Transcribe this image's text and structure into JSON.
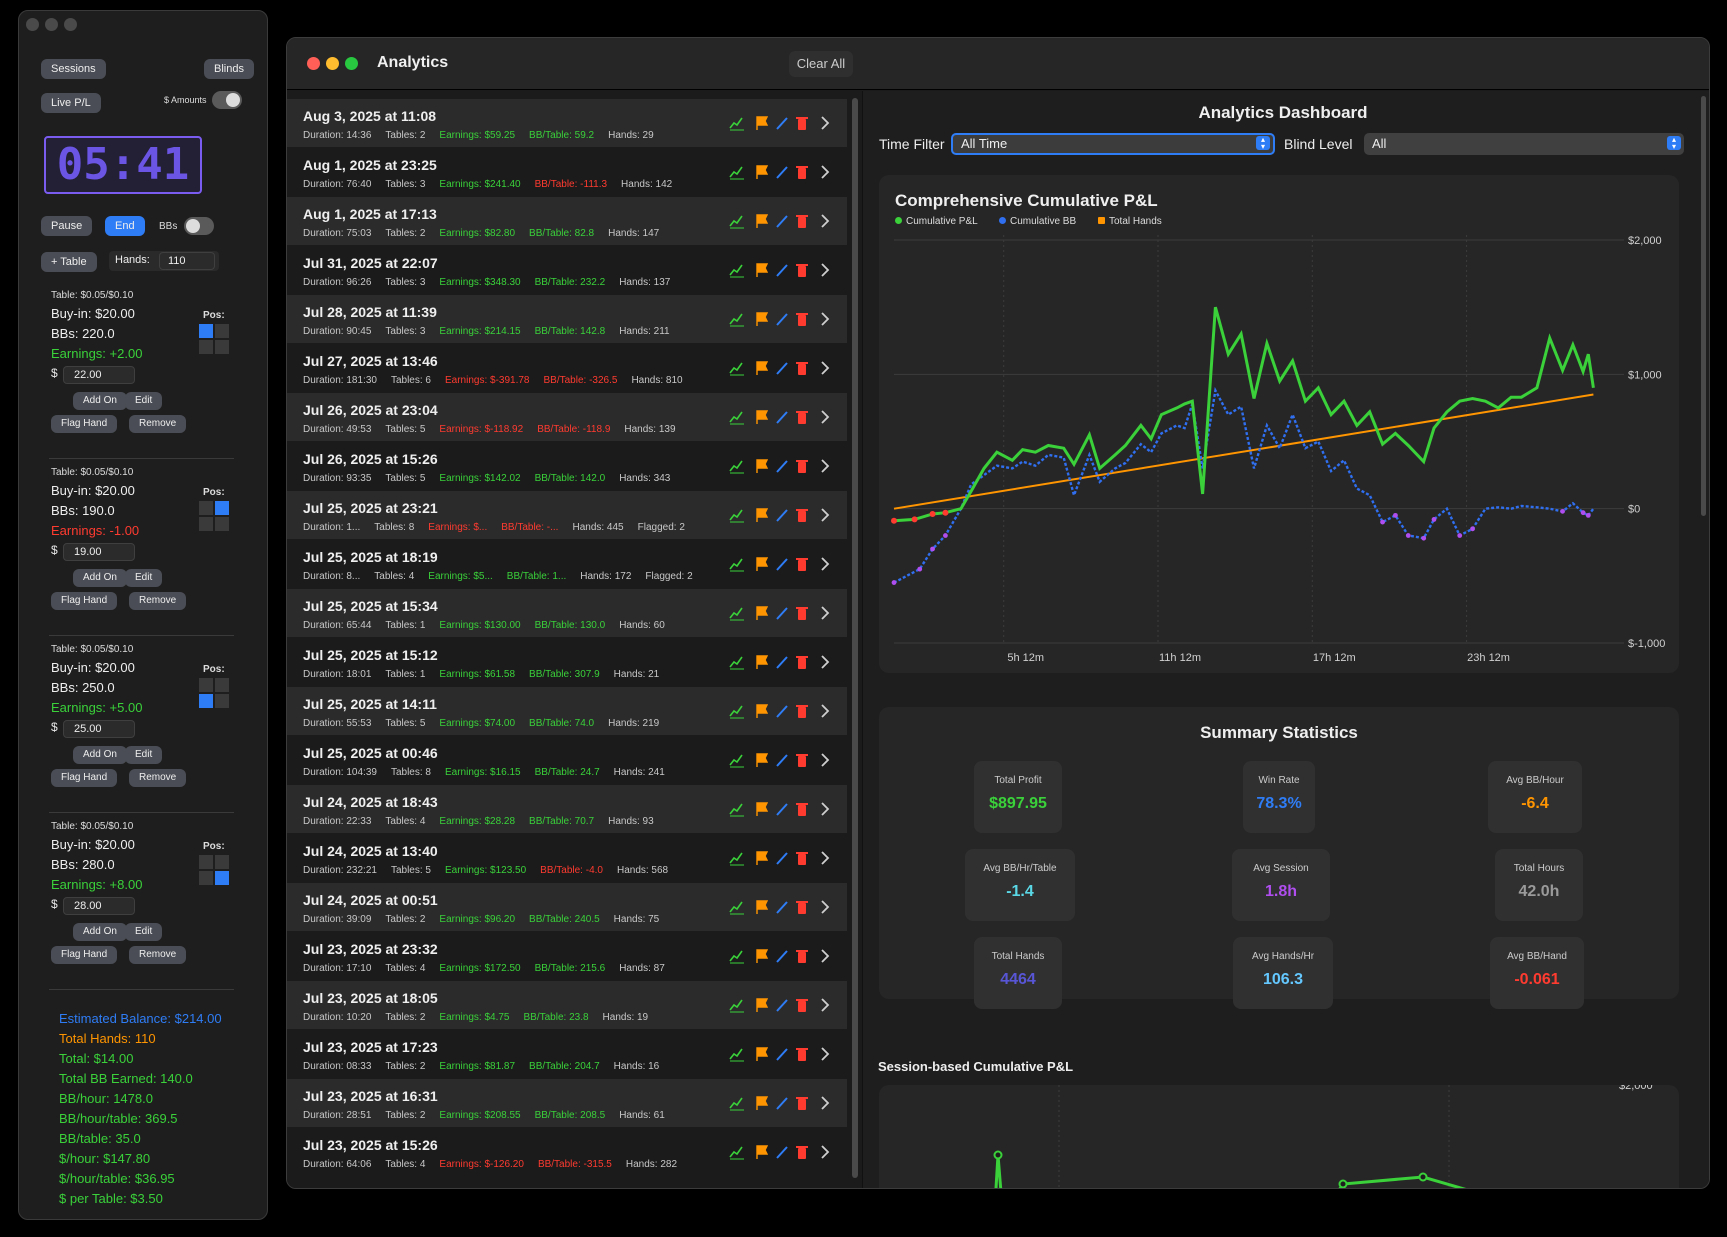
{
  "tracker": {
    "sessions_label": "Sessions",
    "blinds_label": "Blinds",
    "live_pl_label": "Live P/L",
    "amounts_label": "$ Amounts",
    "timer": "05:41",
    "pause_label": "Pause",
    "end_label": "End",
    "bbs_label": "BBs",
    "add_table_label": "+ Table",
    "hands_label": "Hands:",
    "hands_value": "110",
    "tables": [
      {
        "header": "Table: $0.05/$0.10",
        "buyin": "Buy-in: $20.00",
        "bbs": "BBs: 220.0",
        "earnings": "Earnings: +2.00",
        "earn_sign": "pos",
        "amount": "22.00",
        "pos_label": "Pos:",
        "pos_cells": [
          1,
          0,
          0,
          0
        ]
      },
      {
        "header": "Table: $0.05/$0.10",
        "buyin": "Buy-in: $20.00",
        "bbs": "BBs: 190.0",
        "earnings": "Earnings: -1.00",
        "earn_sign": "neg",
        "amount": "19.00",
        "pos_label": "Pos:",
        "pos_cells": [
          0,
          1,
          0,
          0
        ]
      },
      {
        "header": "Table: $0.05/$0.10",
        "buyin": "Buy-in: $20.00",
        "bbs": "BBs: 250.0",
        "earnings": "Earnings: +5.00",
        "earn_sign": "pos",
        "amount": "25.00",
        "pos_label": "Pos:",
        "pos_cells": [
          0,
          0,
          1,
          0
        ]
      },
      {
        "header": "Table: $0.05/$0.10",
        "buyin": "Buy-in: $20.00",
        "bbs": "BBs: 280.0",
        "earnings": "Earnings: +8.00",
        "earn_sign": "pos",
        "amount": "28.00",
        "pos_label": "Pos:",
        "pos_cells": [
          0,
          0,
          0,
          1
        ]
      }
    ],
    "dollar_sign": "$",
    "add_on_label": "Add On",
    "edit_label": "Edit",
    "flag_hand_label": "Flag Hand",
    "remove_label": "Remove",
    "totals": [
      {
        "text": "Estimated Balance: $214.00",
        "color": "#2f7df6"
      },
      {
        "text": "Total Hands: 110",
        "color": "#ff9500"
      },
      {
        "text": "Total: $14.00",
        "color": "#3ad13a"
      },
      {
        "text": "Total BB Earned: 140.0",
        "color": "#3ad13a"
      },
      {
        "text": "BB/hour: 1478.0",
        "color": "#3ad13a"
      },
      {
        "text": "BB/hour/table: 369.5",
        "color": "#3ad13a"
      },
      {
        "text": "BB/table: 35.0",
        "color": "#3ad13a"
      },
      {
        "text": "$/hour: $147.80",
        "color": "#3ad13a"
      },
      {
        "text": "$/hour/table: $36.95",
        "color": "#3ad13a"
      },
      {
        "text": "$ per Table: $3.50",
        "color": "#3ad13a"
      }
    ]
  },
  "analytics": {
    "window_title": "Analytics",
    "clear_all_label": "Clear All",
    "sessions": [
      {
        "date": "Aug 3, 2025 at 11:08",
        "duration": "Duration: 14:36",
        "tables": "Tables: 2",
        "earnings": "Earnings: $59.25",
        "bb_table": "BB/Table: 59.2",
        "hands": "Hands: 29",
        "flagged": "",
        "earn_pos": true,
        "bb_pos": true
      },
      {
        "date": "Aug 1, 2025 at 23:25",
        "duration": "Duration: 76:40",
        "tables": "Tables: 3",
        "earnings": "Earnings: $241.40",
        "bb_table": "BB/Table: -111.3",
        "hands": "Hands: 142",
        "flagged": "",
        "earn_pos": true,
        "bb_pos": false
      },
      {
        "date": "Aug 1, 2025 at 17:13",
        "duration": "Duration: 75:03",
        "tables": "Tables: 2",
        "earnings": "Earnings: $82.80",
        "bb_table": "BB/Table: 82.8",
        "hands": "Hands: 147",
        "flagged": "",
        "earn_pos": true,
        "bb_pos": true
      },
      {
        "date": "Jul 31, 2025 at 22:07",
        "duration": "Duration: 96:26",
        "tables": "Tables: 3",
        "earnings": "Earnings: $348.30",
        "bb_table": "BB/Table: 232.2",
        "hands": "Hands: 137",
        "flagged": "",
        "earn_pos": true,
        "bb_pos": true
      },
      {
        "date": "Jul 28, 2025 at 11:39",
        "duration": "Duration: 90:45",
        "tables": "Tables: 3",
        "earnings": "Earnings: $214.15",
        "bb_table": "BB/Table: 142.8",
        "hands": "Hands: 211",
        "flagged": "",
        "earn_pos": true,
        "bb_pos": true
      },
      {
        "date": "Jul 27, 2025 at 13:46",
        "duration": "Duration: 181:30",
        "tables": "Tables: 6",
        "earnings": "Earnings: $-391.78",
        "bb_table": "BB/Table: -326.5",
        "hands": "Hands: 810",
        "flagged": "",
        "earn_pos": false,
        "bb_pos": false
      },
      {
        "date": "Jul 26, 2025 at 23:04",
        "duration": "Duration: 49:53",
        "tables": "Tables: 5",
        "earnings": "Earnings: $-118.92",
        "bb_table": "BB/Table: -118.9",
        "hands": "Hands: 139",
        "flagged": "",
        "earn_pos": false,
        "bb_pos": false
      },
      {
        "date": "Jul 26, 2025 at 15:26",
        "duration": "Duration: 93:35",
        "tables": "Tables: 5",
        "earnings": "Earnings: $142.02",
        "bb_table": "BB/Table: 142.0",
        "hands": "Hands: 343",
        "flagged": "",
        "earn_pos": true,
        "bb_pos": true
      },
      {
        "date": "Jul 25, 2025 at 23:21",
        "duration": "Duration: 1...",
        "tables": "Tables: 8",
        "earnings": "Earnings: $...",
        "bb_table": "BB/Table: -...",
        "hands": "Hands: 445",
        "flagged": "Flagged: 2",
        "earn_pos": false,
        "bb_pos": false
      },
      {
        "date": "Jul 25, 2025 at 18:19",
        "duration": "Duration: 8...",
        "tables": "Tables: 4",
        "earnings": "Earnings: $5...",
        "bb_table": "BB/Table: 1...",
        "hands": "Hands: 172",
        "flagged": "Flagged: 2",
        "earn_pos": true,
        "bb_pos": true
      },
      {
        "date": "Jul 25, 2025 at 15:34",
        "duration": "Duration: 65:44",
        "tables": "Tables: 1",
        "earnings": "Earnings: $130.00",
        "bb_table": "BB/Table: 130.0",
        "hands": "Hands: 60",
        "flagged": "",
        "earn_pos": true,
        "bb_pos": true
      },
      {
        "date": "Jul 25, 2025 at 15:12",
        "duration": "Duration: 18:01",
        "tables": "Tables: 1",
        "earnings": "Earnings: $61.58",
        "bb_table": "BB/Table: 307.9",
        "hands": "Hands: 21",
        "flagged": "",
        "earn_pos": true,
        "bb_pos": true
      },
      {
        "date": "Jul 25, 2025 at 14:11",
        "duration": "Duration: 55:53",
        "tables": "Tables: 5",
        "earnings": "Earnings: $74.00",
        "bb_table": "BB/Table: 74.0",
        "hands": "Hands: 219",
        "flagged": "",
        "earn_pos": true,
        "bb_pos": true
      },
      {
        "date": "Jul 25, 2025 at 00:46",
        "duration": "Duration: 104:39",
        "tables": "Tables: 8",
        "earnings": "Earnings: $16.15",
        "bb_table": "BB/Table: 24.7",
        "hands": "Hands: 241",
        "flagged": "",
        "earn_pos": true,
        "bb_pos": true
      },
      {
        "date": "Jul 24, 2025 at 18:43",
        "duration": "Duration: 22:33",
        "tables": "Tables: 4",
        "earnings": "Earnings: $28.28",
        "bb_table": "BB/Table: 70.7",
        "hands": "Hands: 93",
        "flagged": "",
        "earn_pos": true,
        "bb_pos": true
      },
      {
        "date": "Jul 24, 2025 at 13:40",
        "duration": "Duration: 232:21",
        "tables": "Tables: 5",
        "earnings": "Earnings: $123.50",
        "bb_table": "BB/Table: -4.0",
        "hands": "Hands: 568",
        "flagged": "",
        "earn_pos": true,
        "bb_pos": false
      },
      {
        "date": "Jul 24, 2025 at 00:51",
        "duration": "Duration: 39:09",
        "tables": "Tables: 2",
        "earnings": "Earnings: $96.20",
        "bb_table": "BB/Table: 240.5",
        "hands": "Hands: 75",
        "flagged": "",
        "earn_pos": true,
        "bb_pos": true
      },
      {
        "date": "Jul 23, 2025 at 23:32",
        "duration": "Duration: 17:10",
        "tables": "Tables: 4",
        "earnings": "Earnings: $172.50",
        "bb_table": "BB/Table: 215.6",
        "hands": "Hands: 87",
        "flagged": "",
        "earn_pos": true,
        "bb_pos": true
      },
      {
        "date": "Jul 23, 2025 at 18:05",
        "duration": "Duration: 10:20",
        "tables": "Tables: 2",
        "earnings": "Earnings: $4.75",
        "bb_table": "BB/Table: 23.8",
        "hands": "Hands: 19",
        "flagged": "",
        "earn_pos": true,
        "bb_pos": true
      },
      {
        "date": "Jul 23, 2025 at 17:23",
        "duration": "Duration: 08:33",
        "tables": "Tables: 2",
        "earnings": "Earnings: $81.87",
        "bb_table": "BB/Table: 204.7",
        "hands": "Hands: 16",
        "flagged": "",
        "earn_pos": true,
        "bb_pos": true
      },
      {
        "date": "Jul 23, 2025 at 16:31",
        "duration": "Duration: 28:51",
        "tables": "Tables: 2",
        "earnings": "Earnings: $208.55",
        "bb_table": "BB/Table: 208.5",
        "hands": "Hands: 61",
        "flagged": "",
        "earn_pos": true,
        "bb_pos": true
      },
      {
        "date": "Jul 23, 2025 at 15:26",
        "duration": "Duration: 64:06",
        "tables": "Tables: 4",
        "earnings": "Earnings: $-126.20",
        "bb_table": "BB/Table: -315.5",
        "hands": "Hands: 282",
        "flagged": "",
        "earn_pos": false,
        "bb_pos": false
      }
    ],
    "row_icons": [
      "chart-icon",
      "flag-icon",
      "pencil-icon",
      "trash-icon",
      "chevron-right-icon"
    ],
    "dashboard_title": "Analytics Dashboard",
    "time_filter_label": "Time Filter",
    "time_filter_value": "All Time",
    "blind_level_label": "Blind Level",
    "blind_level_value": "All",
    "summary_title": "Summary Statistics",
    "stats": [
      {
        "label": "Total Profit",
        "value": "$897.95",
        "color": "#3ad13a"
      },
      {
        "label": "Win Rate",
        "value": "78.3%",
        "color": "#2f7df6"
      },
      {
        "label": "Avg BB/Hour",
        "value": "-6.4",
        "color": "#ff9500"
      },
      {
        "label": "Avg BB/Hr/Table",
        "value": "-1.4",
        "color": "#5ad8e6"
      },
      {
        "label": "Avg Session",
        "value": "1.8h",
        "color": "#b04ef0"
      },
      {
        "label": "Total Hours",
        "value": "42.0h",
        "color": "#9a9a9a"
      },
      {
        "label": "Total Hands",
        "value": "4464",
        "color": "#5856d6"
      },
      {
        "label": "Avg Hands/Hr",
        "value": "106.3",
        "color": "#64c8ff"
      },
      {
        "label": "Avg BB/Hand",
        "value": "-0.061",
        "color": "#ff3b30"
      }
    ],
    "session_chart_title": "Session-based Cumulative P&L",
    "session_chart_partial_tick": "$2,000"
  },
  "chart_data": [
    {
      "type": "line",
      "title": "Comprehensive Cumulative P&L",
      "legend": [
        {
          "name": "Cumulative P&L",
          "color": "#3ad13a"
        },
        {
          "name": "Cumulative BB",
          "color": "#2f6ff0"
        },
        {
          "name": "Total Hands",
          "color": "#ff9500"
        }
      ],
      "legend_position": "top-left",
      "x_ticks": [
        "5h 12m",
        "11h 12m",
        "17h 12m",
        "23h 12m"
      ],
      "x_tick_positions_hours": [
        5.2,
        11.2,
        17.2,
        23.2
      ],
      "x_range_hours": [
        0,
        28
      ],
      "y_ticks": [
        "$2,000",
        "$1,000",
        "$0",
        "$-1,000"
      ],
      "y_tick_values": [
        2000,
        1000,
        0,
        -1000
      ],
      "ylim": [
        -1000,
        2000
      ],
      "grid": true,
      "series": [
        {
          "name": "Cumulative P&L",
          "x": [
            0,
            0.8,
            1.5,
            2,
            2.6,
            3,
            3.5,
            4,
            4.6,
            5,
            5.5,
            6,
            6.6,
            7,
            7.6,
            8,
            8.6,
            9,
            9.6,
            10,
            10.4,
            11,
            11.3,
            11.6,
            12,
            12.5,
            13,
            13.5,
            14,
            14.5,
            15,
            15.5,
            16,
            16.5,
            17,
            17.5,
            18,
            18.5,
            19,
            19.5,
            20,
            20.6,
            21,
            21.5,
            22,
            22.5,
            23,
            23.5,
            24,
            24.4,
            25,
            25.5,
            26,
            26.4,
            26.8,
            27,
            27.2
          ],
          "y": [
            -90,
            -80,
            -40,
            -30,
            0,
            130,
            300,
            420,
            360,
            440,
            420,
            470,
            450,
            330,
            550,
            300,
            400,
            470,
            620,
            520,
            700,
            750,
            780,
            800,
            110,
            1500,
            1150,
            1300,
            820,
            1230,
            950,
            1100,
            800,
            900,
            700,
            800,
            620,
            720,
            480,
            560,
            470,
            350,
            600,
            720,
            800,
            820,
            800,
            750,
            830,
            830,
            900,
            1270,
            1030,
            1220,
            1020,
            1150,
            900
          ]
        },
        {
          "name": "Cumulative BB",
          "x": [
            0,
            1,
            1.5,
            2,
            2.6,
            3,
            3.5,
            4,
            4.6,
            5,
            5.5,
            6,
            6.6,
            7,
            7.6,
            8,
            8.6,
            9,
            9.6,
            10,
            10.4,
            11,
            11.3,
            11.6,
            12,
            12.5,
            13,
            13.5,
            14,
            14.5,
            15,
            15.5,
            16,
            16.5,
            17,
            17.5,
            18,
            18.5,
            19,
            19.5,
            20,
            20.6,
            21,
            21.5,
            22,
            22.5,
            23,
            23.5,
            24,
            24.4,
            25,
            25.5,
            26,
            26.4,
            26.8,
            27,
            27.2
          ],
          "y": [
            -550,
            -450,
            -300,
            -200,
            0,
            180,
            250,
            320,
            300,
            350,
            320,
            400,
            380,
            100,
            400,
            200,
            300,
            340,
            480,
            420,
            560,
            620,
            600,
            780,
            300,
            880,
            700,
            760,
            300,
            620,
            450,
            700,
            450,
            500,
            280,
            360,
            150,
            100,
            -100,
            -50,
            -200,
            -220,
            -80,
            0,
            -200,
            -150,
            0,
            10,
            0,
            20,
            10,
            0,
            -20,
            40,
            -30,
            -50,
            0
          ]
        },
        {
          "name": "Total Hands",
          "x": [
            0,
            27.2
          ],
          "y": [
            0,
            850
          ]
        }
      ]
    },
    {
      "type": "line",
      "title": "Session-based Cumulative P&L",
      "y_ticks": [
        "$2,000"
      ],
      "series": [
        {
          "name": "",
          "y": [
            1000
          ]
        }
      ]
    }
  ]
}
